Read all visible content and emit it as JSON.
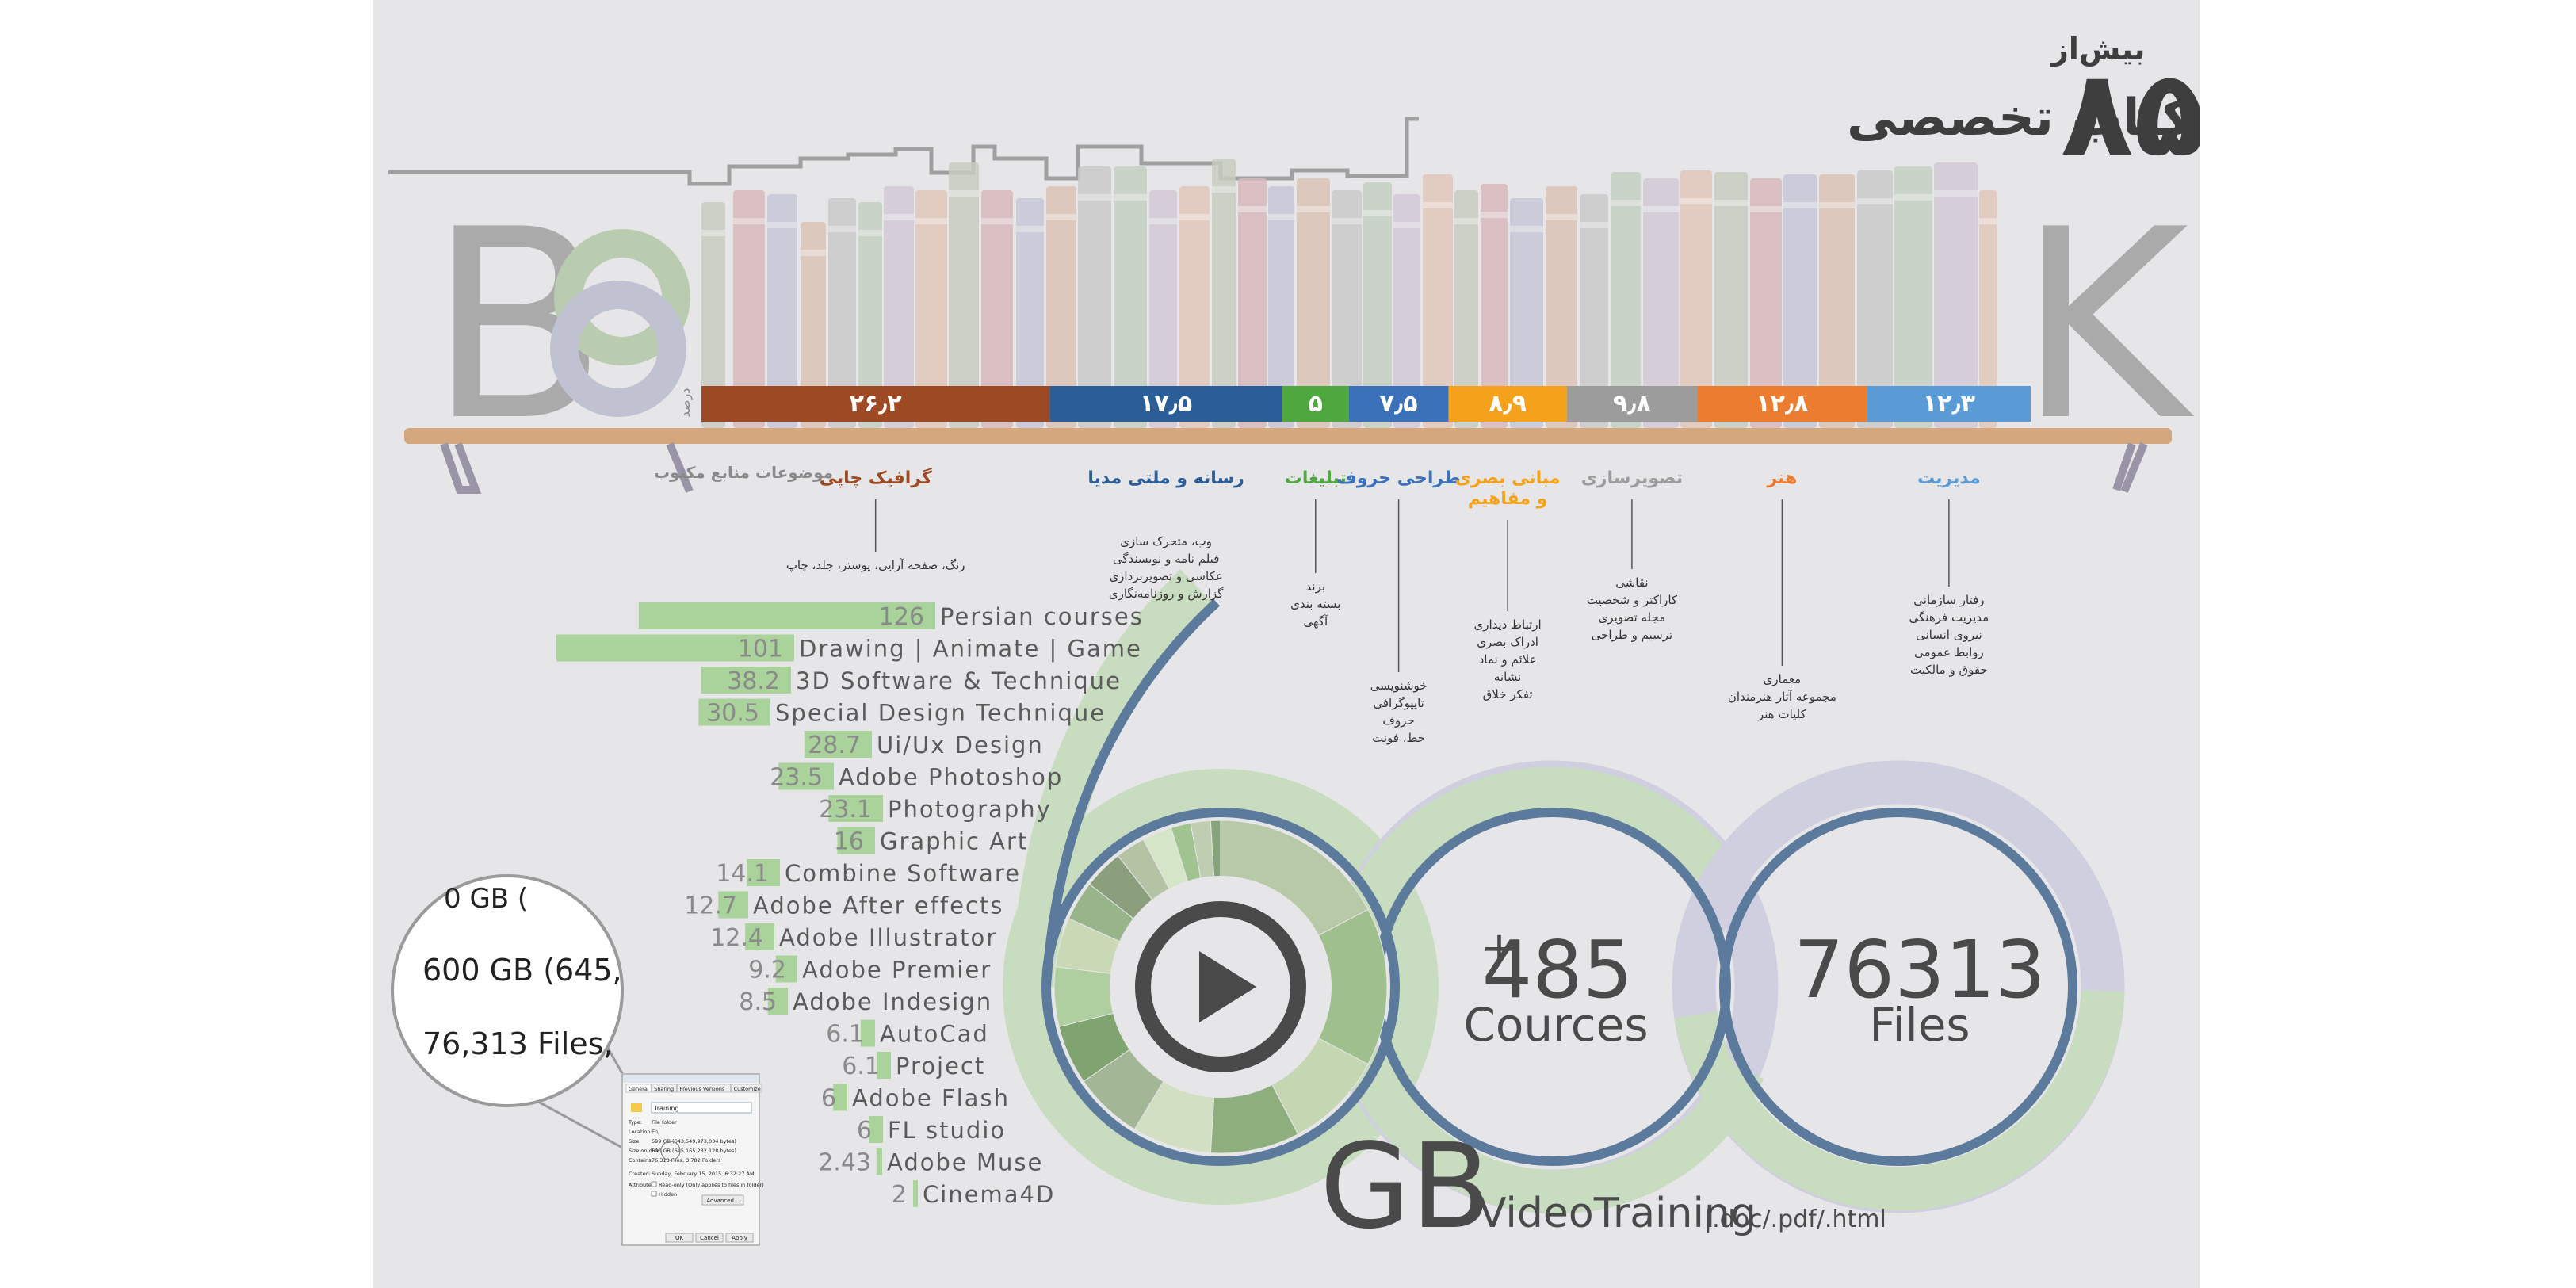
{
  "header": {
    "pre": "بیش‌از",
    "number": "۸۵۰",
    "title": "جلد کتاب تخصصی"
  },
  "book_letters": {
    "b": "B",
    "k": "K"
  },
  "shelf": {
    "percent_label": "درصد",
    "topics_label": "موضوعات منابع مکتوب"
  },
  "chart_data": [
    {
      "type": "bar",
      "title": "",
      "unit": "درصد",
      "colors": [
        "#9d4a24",
        "#2b5e96",
        "#4fa83d",
        "#3a71b8",
        "#f4a21c",
        "#9c9c9c",
        "#ec7c30",
        "#5a9bd5"
      ],
      "categories": [
        "گرافیک چاپی",
        "رسانه و ملتی مدیا",
        "تبلیغات",
        "طراحی حروف",
        "مبانی بصری و مفاهیم",
        "تصویرسازی",
        "هنر",
        "مدیریت"
      ],
      "value_labels": [
        "۲۶٫۲",
        "۱۷٫۵",
        "۵",
        "۷٫۵",
        "۸٫۹",
        "۹٫۸",
        "۱۲٫۸",
        "۱۲٫۳"
      ],
      "values": [
        26.2,
        17.5,
        5,
        7.5,
        8.9,
        9.8,
        12.8,
        12.3
      ],
      "category_title_lines": [
        [
          "گرافیک چاپی"
        ],
        [
          "رسانه و ملتی مدیا"
        ],
        [
          "تبلیغات"
        ],
        [
          "طراحی حروف"
        ],
        [
          "مبانی بصری",
          "و مفاهیم"
        ],
        [
          "تصویرسازی"
        ],
        [
          "هنر"
        ],
        [
          "مدیریت"
        ]
      ],
      "subtopics": [
        [
          "رنگ، صفحه آرایی، پوستر، جلد، چاپ"
        ],
        [
          "وب، متحرک سازی",
          "فیلم نامه و نویسندگی",
          "عکاسی و تصویربرداری",
          "گزارش و روزنامه‌نگاری"
        ],
        [
          "برند",
          "بسته بندی",
          "آگهی"
        ],
        [
          "خوشنویسی",
          "تایپوگرافی",
          "حروف",
          "خط، فونت"
        ],
        [
          "ارتباط دیداری",
          "ادراک بصری",
          "علائم و نماد",
          "نشانه",
          "تفکر خلاق"
        ],
        [
          "نقاشی",
          "کاراکتر و شخصیت",
          "مجله تصویری",
          "ترسیم و طراحی"
        ],
        [
          "معماری",
          "مجموعه آثار هنرمندان",
          "کلیات هنر"
        ],
        [
          "رفتار سازمانی",
          "مدیریت فرهنگی",
          "نیروی انسانی",
          "روابط عمومی",
          "حقوق و مالکیت"
        ]
      ]
    },
    {
      "type": "bar",
      "title": "",
      "orientation": "horizontal",
      "color": "#a9d39a",
      "categories": [
        "Persian courses",
        "Drawing | Animate | Game",
        "3D Software & Technique",
        "Special Design Technique",
        "Ui/Ux Design",
        "Adobe Photoshop",
        "Photography",
        "Graphic Art",
        "Combine Software",
        "Adobe After effects",
        "Adobe Illustrator",
        "Adobe Premier",
        "Adobe Indesign",
        "AutoCad",
        "Project",
        "Adobe Flash",
        "FL studio",
        "Adobe Muse",
        "Cinema4D"
      ],
      "values": [
        126,
        101,
        38.2,
        30.5,
        28.7,
        23.5,
        23.1,
        16,
        14.1,
        12.7,
        12.4,
        9.2,
        8.5,
        6.1,
        6.1,
        6,
        6,
        2.43,
        2
      ]
    }
  ],
  "stats": {
    "big_number": "600",
    "unit": "GB",
    "video_label": "VideoTraining",
    "formats": "|.doc/.pdf/.html",
    "courses_value": "485",
    "courses_plus": "+",
    "courses_label": "Cources",
    "files_value": "76313",
    "files_label": "Files"
  },
  "magnifier": {
    "line1": "600 GB (645,",
    "line2": "76,313 Files, ",
    "top_fragment": "0 GB ("
  },
  "properties_dialog": {
    "tabs": [
      "General",
      "Sharing",
      "Previous Versions",
      "Customize"
    ],
    "folder_name": "Training",
    "rows": [
      {
        "label": "Type:",
        "value": "File folder"
      },
      {
        "label": "Location:",
        "value": "E:\\"
      },
      {
        "label": "Size:",
        "value": "599 GB (643,549,973,034 bytes)"
      },
      {
        "label": "Size on disk:",
        "value": "600 GB (645,165,232,128 bytes)"
      },
      {
        "label": "Contains:",
        "value": "76,313 Files, 3,782 Folders"
      },
      {
        "label": "Created:",
        "value": "Sunday, February 15, 2015, 6:32:27 AM"
      },
      {
        "label": "Attributes:",
        "value": "Read-only (Only applies to files in folder)"
      },
      {
        "label": "",
        "value": "Hidden"
      }
    ],
    "advanced_button": "Advanced...",
    "buttons": [
      "OK",
      "Cancel",
      "Apply"
    ]
  },
  "colors": {
    "background": "#e6e6e8",
    "shelf": "#d4a77c",
    "bar_green": "#a9d39a",
    "ring_blue": "#5b7a9c",
    "ring_green": "#c8dcc0",
    "ring_lavender": "#c9c9dc",
    "text_dark": "#4a4a4a",
    "text_grey": "#8a8a8a"
  },
  "icons": {
    "play": "play-icon",
    "magnifier": "magnifier-lens-icon",
    "folder": "folder-icon"
  }
}
